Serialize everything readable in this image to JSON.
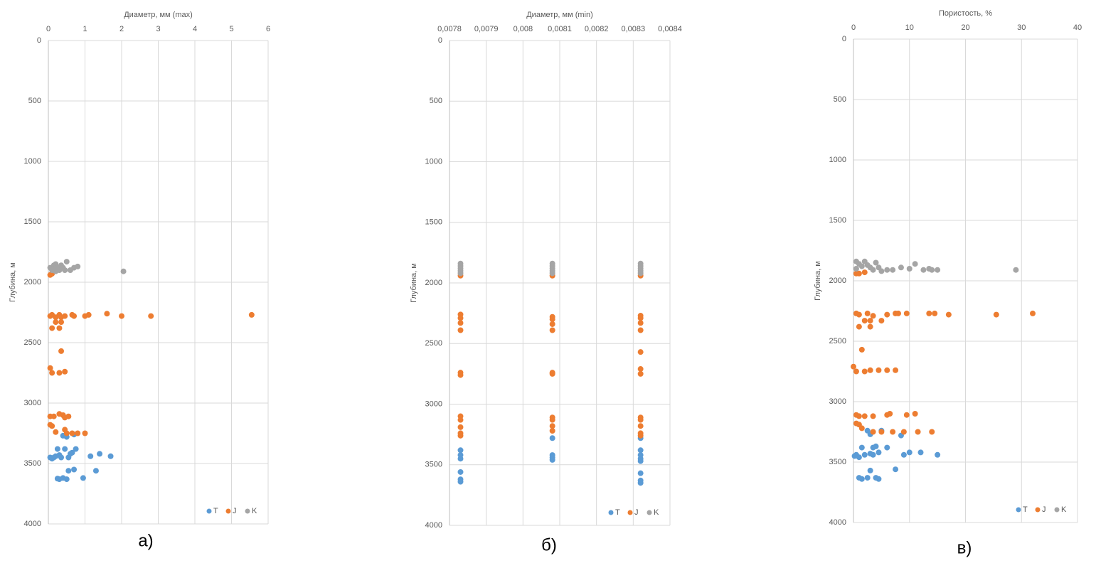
{
  "chart_data": [
    {
      "type": "scatter",
      "x_label": "Диаметр, мм (max)",
      "y_label": "Глубина, м",
      "caption": "а)",
      "xlim": [
        0,
        6
      ],
      "xticks": [
        0,
        1,
        2,
        3,
        4,
        5,
        6
      ],
      "ylim": [
        0,
        4000
      ],
      "yticks": [
        0,
        500,
        1000,
        1500,
        2000,
        2500,
        3000,
        3500,
        4000
      ],
      "y_reversed": true,
      "grid": true,
      "legend": "lower right",
      "series": [
        {
          "name": "T",
          "color": "#5b9bd5",
          "x": [
            0.05,
            0.1,
            0.15,
            0.2,
            0.25,
            0.3,
            0.35,
            0.4,
            0.45,
            0.5,
            0.55,
            0.6,
            0.65,
            0.7,
            0.75,
            1.15,
            1.4,
            1.7,
            0.55,
            0.7,
            1.3,
            0.3,
            0.4,
            0.5,
            0.95,
            0.25
          ],
          "values": [
            3450,
            3460,
            3450,
            3440,
            3380,
            3430,
            3450,
            3270,
            3380,
            3280,
            3450,
            3420,
            3410,
            3260,
            3380,
            3440,
            3420,
            3440,
            3560,
            3550,
            3560,
            3630,
            3620,
            3630,
            3620,
            3625
          ]
        },
        {
          "name": "J",
          "color": "#ed7d31",
          "x": [
            0.05,
            0.1,
            0.05,
            0.1,
            0.2,
            0.3,
            0.35,
            0.45,
            0.7,
            0.65,
            1.0,
            1.1,
            1.6,
            2.0,
            2.8,
            5.55,
            0.1,
            0.2,
            0.3,
            0.35,
            0.35,
            0.05,
            0.1,
            0.3,
            0.45,
            0.05,
            0.15,
            0.3,
            0.4,
            0.55,
            0.45,
            0.05,
            0.1,
            0.2,
            0.45,
            0.5,
            0.65,
            0.8,
            1.0
          ],
          "values": [
            1940,
            1930,
            2280,
            2270,
            2290,
            2270,
            2290,
            2280,
            2280,
            2270,
            2280,
            2270,
            2260,
            2280,
            2280,
            2270,
            2380,
            2330,
            2380,
            2330,
            2570,
            2710,
            2750,
            2750,
            2740,
            3110,
            3110,
            3090,
            3100,
            3110,
            3120,
            3180,
            3190,
            3240,
            3220,
            3250,
            3250,
            3250,
            3250
          ]
        },
        {
          "name": "K",
          "color": "#a5a5a5",
          "x": [
            0.05,
            0.1,
            0.15,
            0.2,
            0.25,
            0.3,
            0.35,
            0.4,
            0.45,
            0.5,
            0.6,
            0.7,
            0.8,
            2.05,
            0.2,
            0.1
          ],
          "values": [
            1880,
            1900,
            1860,
            1850,
            1880,
            1900,
            1860,
            1880,
            1900,
            1830,
            1900,
            1880,
            1870,
            1910,
            1910,
            1890
          ]
        }
      ]
    },
    {
      "type": "scatter",
      "x_label": "Диаметр, мм (min)",
      "y_label": "Глубина, м",
      "caption": "б)",
      "xlim": [
        0.0078,
        0.0084
      ],
      "xticks": [
        {
          "value": 0.0078,
          "label": "0,0078"
        },
        {
          "value": 0.0079,
          "label": "0,0079"
        },
        {
          "value": 0.008,
          "label": "0,008"
        },
        {
          "value": 0.0081,
          "label": "0,0081"
        },
        {
          "value": 0.0082,
          "label": "0,0082"
        },
        {
          "value": 0.0083,
          "label": "0,0083"
        },
        {
          "value": 0.0084,
          "label": "0,0084"
        }
      ],
      "ylim": [
        0,
        4000
      ],
      "yticks": [
        0,
        500,
        1000,
        1500,
        2000,
        2500,
        3000,
        3500,
        4000
      ],
      "y_reversed": true,
      "grid": true,
      "legend": "lower right",
      "series": [
        {
          "name": "T",
          "color": "#5b9bd5",
          "x": [
            0.00783,
            0.00783,
            0.00783,
            0.00783,
            0.00783,
            0.00783,
            0.00808,
            0.00808,
            0.00808,
            0.00808,
            0.00832,
            0.00832,
            0.00832,
            0.00832,
            0.00832,
            0.00832,
            0.00832,
            0.00832
          ],
          "values": [
            3380,
            3420,
            3450,
            3560,
            3620,
            3640,
            3280,
            3420,
            3440,
            3460,
            3280,
            3380,
            3420,
            3450,
            3470,
            3570,
            3630,
            3650
          ]
        },
        {
          "name": "J",
          "color": "#ed7d31",
          "x": [
            0.00783,
            0.00783,
            0.00783,
            0.00783,
            0.00783,
            0.00783,
            0.00783,
            0.00783,
            0.00783,
            0.00783,
            0.00783,
            0.00783,
            0.00808,
            0.00808,
            0.00808,
            0.00808,
            0.00808,
            0.00808,
            0.00808,
            0.00808,
            0.00808,
            0.00808,
            0.00808,
            0.00832,
            0.00832,
            0.00832,
            0.00832,
            0.00832,
            0.00832,
            0.00832,
            0.00832,
            0.00832,
            0.00832,
            0.00832,
            0.00832,
            0.00832
          ],
          "values": [
            1940,
            2260,
            2290,
            2330,
            2390,
            2740,
            2760,
            3100,
            3130,
            3190,
            3240,
            3260,
            1940,
            2280,
            2300,
            2340,
            2390,
            2740,
            2750,
            3110,
            3130,
            3180,
            3220,
            1940,
            2270,
            2290,
            2330,
            2390,
            2570,
            2710,
            2750,
            3110,
            3130,
            3180,
            3240,
            3260
          ]
        },
        {
          "name": "K",
          "color": "#a5a5a5",
          "x": [
            0.00783,
            0.00783,
            0.00783,
            0.00783,
            0.00783,
            0.00808,
            0.00808,
            0.00808,
            0.00808,
            0.00808,
            0.00832,
            0.00832,
            0.00832,
            0.00832,
            0.00832
          ],
          "values": [
            1840,
            1860,
            1880,
            1900,
            1920,
            1840,
            1860,
            1880,
            1900,
            1920,
            1840,
            1860,
            1880,
            1900,
            1920
          ]
        }
      ]
    },
    {
      "type": "scatter",
      "x_label": "Пористость, %",
      "y_label": "Глубина, м",
      "caption": "в)",
      "xlim": [
        0,
        40
      ],
      "xticks": [
        0,
        10,
        20,
        30,
        40
      ],
      "ylim": [
        0,
        4000
      ],
      "yticks": [
        0,
        500,
        1000,
        1500,
        2000,
        2500,
        3000,
        3500,
        4000
      ],
      "y_reversed": true,
      "grid": true,
      "legend": "lower right",
      "series": [
        {
          "name": "T",
          "color": "#5b9bd5",
          "x": [
            0.2,
            0.5,
            1,
            1.5,
            2,
            2.5,
            3,
            3.5,
            3.5,
            4,
            4.5,
            5,
            6,
            7.5,
            3,
            2.5,
            1,
            1.5,
            4,
            4.5,
            9,
            10,
            12,
            15,
            8.5,
            3
          ],
          "values": [
            3450,
            3440,
            3460,
            3380,
            3440,
            3240,
            3430,
            3380,
            3440,
            3370,
            3420,
            3240,
            3380,
            3560,
            3570,
            3630,
            3630,
            3640,
            3630,
            3640,
            3440,
            3420,
            3420,
            3440,
            3280,
            3270
          ]
        },
        {
          "name": "J",
          "color": "#ed7d31",
          "x": [
            0.5,
            1,
            2,
            0.5,
            1,
            2.5,
            3.5,
            6,
            7.5,
            8,
            9.5,
            13.5,
            14.5,
            17,
            25.5,
            32,
            1,
            2,
            3,
            5,
            3,
            1.5,
            0,
            0.5,
            2,
            3,
            4.5,
            6,
            7.5,
            0.5,
            1,
            2,
            3.5,
            6,
            6.5,
            9.5,
            11,
            0.5,
            1,
            1.5,
            3.5,
            5,
            7,
            9,
            11.5,
            14
          ],
          "values": [
            1940,
            1940,
            1930,
            2270,
            2280,
            2270,
            2290,
            2280,
            2270,
            2270,
            2270,
            2270,
            2270,
            2280,
            2280,
            2270,
            2380,
            2330,
            2330,
            2330,
            2380,
            2570,
            2710,
            2750,
            2750,
            2740,
            2740,
            2740,
            2740,
            3110,
            3120,
            3120,
            3120,
            3110,
            3100,
            3110,
            3100,
            3180,
            3190,
            3220,
            3250,
            3250,
            3250,
            3250,
            3250,
            3250
          ]
        },
        {
          "name": "K",
          "color": "#a5a5a5",
          "x": [
            0.5,
            1,
            1.5,
            2,
            2.5,
            3,
            3.5,
            4,
            4.5,
            5,
            6,
            7,
            8.5,
            10,
            11,
            12.5,
            13.5,
            14,
            15,
            29,
            0.5
          ],
          "values": [
            1840,
            1860,
            1880,
            1840,
            1870,
            1890,
            1910,
            1850,
            1890,
            1920,
            1910,
            1910,
            1890,
            1900,
            1860,
            1910,
            1900,
            1910,
            1910,
            1910,
            1900
          ]
        }
      ]
    }
  ]
}
